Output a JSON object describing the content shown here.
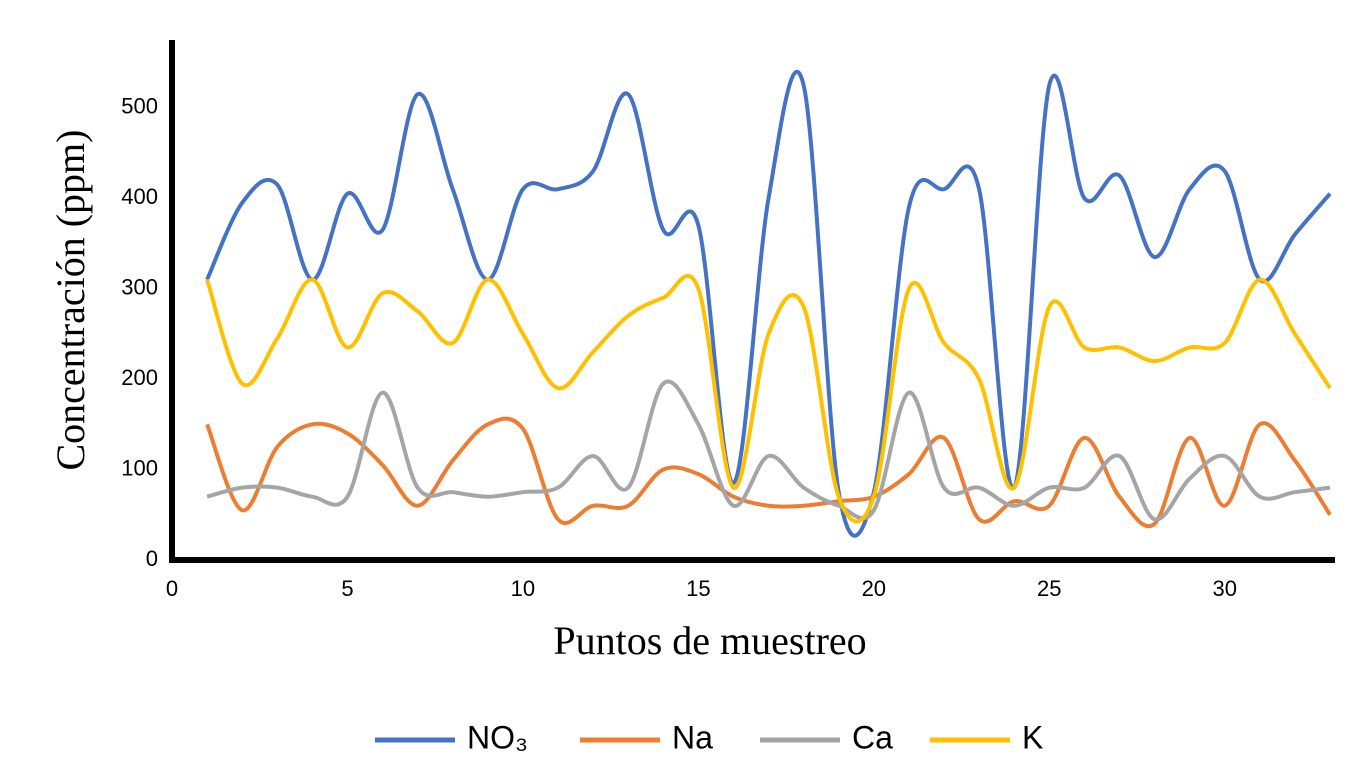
{
  "chart_data": {
    "type": "line",
    "x_label": "Puntos de muestreo",
    "y_label": "Concentración (ppm)",
    "x": [
      1,
      2,
      3,
      4,
      5,
      6,
      7,
      8,
      9,
      10,
      11,
      12,
      13,
      14,
      15,
      16,
      17,
      18,
      19,
      20,
      21,
      22,
      23,
      24,
      25,
      26,
      27,
      28,
      29,
      30,
      31,
      32,
      33
    ],
    "series": [
      {
        "name": "NO₃",
        "color": "#4472c4",
        "values": [
          310,
          395,
          415,
          310,
          405,
          365,
          515,
          410,
          310,
          410,
          410,
          430,
          515,
          365,
          370,
          85,
          400,
          525,
          75,
          75,
          390,
          410,
          410,
          80,
          525,
          400,
          425,
          335,
          410,
          430,
          310,
          360,
          405
        ]
      },
      {
        "name": "Na",
        "color": "#ed7d31",
        "values": [
          150,
          55,
          125,
          150,
          140,
          105,
          60,
          110,
          150,
          145,
          45,
          60,
          60,
          100,
          95,
          70,
          60,
          60,
          65,
          70,
          95,
          135,
          45,
          65,
          60,
          135,
          70,
          40,
          135,
          60,
          150,
          110,
          50
        ]
      },
      {
        "name": "Ca",
        "color": "#a5a5a5",
        "values": [
          70,
          80,
          80,
          70,
          70,
          185,
          80,
          75,
          70,
          75,
          80,
          115,
          80,
          195,
          150,
          60,
          115,
          80,
          60,
          55,
          185,
          80,
          80,
          60,
          80,
          80,
          115,
          45,
          90,
          115,
          70,
          75,
          80
        ]
      },
      {
        "name": "K",
        "color": "#ffc000",
        "values": [
          310,
          195,
          245,
          310,
          235,
          295,
          275,
          240,
          310,
          250,
          190,
          230,
          270,
          290,
          300,
          80,
          250,
          280,
          70,
          70,
          300,
          240,
          200,
          80,
          280,
          235,
          235,
          220,
          235,
          240,
          310,
          250,
          190
        ]
      }
    ],
    "xlim": [
      0,
      33
    ],
    "xticks": [
      0,
      5,
      10,
      15,
      20,
      25,
      30
    ],
    "ylim": [
      0,
      575
    ],
    "yticks": [
      0,
      100,
      200,
      300,
      400,
      500
    ],
    "grid": false,
    "legend": "bottom"
  }
}
